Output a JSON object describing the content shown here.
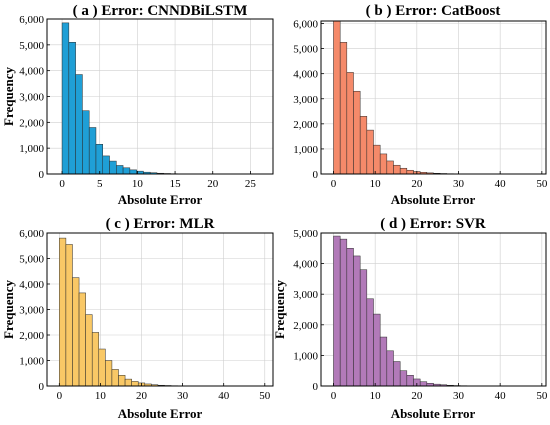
{
  "chart_data": [
    {
      "type": "bar",
      "title": "( a ) Error: CNNDBiLSTM",
      "xlabel": "Absolute Error",
      "ylabel": "Frequency",
      "xlim": [
        -2,
        28
      ],
      "ylim": [
        0,
        6000
      ],
      "xticks": [
        0,
        5,
        10,
        15,
        20,
        25
      ],
      "yticks": [
        0,
        1000,
        2000,
        3000,
        4000,
        5000,
        6000
      ],
      "ytick_labels": [
        "0",
        "1,000",
        "2,000",
        "3,000",
        "4,000",
        "5,000",
        "6,000"
      ],
      "color": "#1f9fd6",
      "bin_start": 0,
      "bin_width": 0.9,
      "values": [
        5850,
        5100,
        3850,
        2450,
        1800,
        1150,
        700,
        500,
        330,
        240,
        160,
        110,
        70,
        50,
        30,
        20,
        12,
        8,
        5,
        3,
        2,
        2,
        1,
        1,
        1,
        1,
        1,
        1,
        1,
        1
      ]
    },
    {
      "type": "bar",
      "title": "( b ) Error: CatBoost",
      "xlabel": "Absolute Error",
      "ylabel": "",
      "xlim": [
        -3,
        51
      ],
      "ylim": [
        0,
        6100
      ],
      "xticks": [
        0,
        10,
        20,
        30,
        40,
        50
      ],
      "yticks": [
        0,
        1000,
        2000,
        3000,
        4000,
        5000,
        6000
      ],
      "ytick_labels": [
        "0",
        "1,000",
        "2,000",
        "3,000",
        "4,000",
        "5,000",
        "6,000"
      ],
      "color": "#f58a6a",
      "bin_start": 0,
      "bin_width": 1.6,
      "values": [
        6100,
        5250,
        4050,
        3300,
        2300,
        1750,
        1150,
        800,
        520,
        350,
        230,
        150,
        100,
        70,
        45,
        30,
        20,
        12,
        8,
        5,
        4,
        3,
        2,
        2,
        1,
        1,
        1,
        1,
        1,
        1,
        1
      ]
    },
    {
      "type": "bar",
      "title": "( c ) Error: MLR",
      "xlabel": "Absolute Error",
      "ylabel": "Frequency",
      "xlim": [
        -3,
        52
      ],
      "ylim": [
        0,
        6000
      ],
      "xticks": [
        0,
        10,
        20,
        30,
        40,
        50
      ],
      "yticks": [
        0,
        1000,
        2000,
        3000,
        4000,
        5000,
        6000
      ],
      "ytick_labels": [
        "0",
        "1,000",
        "2,000",
        "3,000",
        "4,000",
        "5,000",
        "6,000"
      ],
      "color": "#f9c866",
      "bin_start": 0,
      "bin_width": 1.6,
      "values": [
        5800,
        5550,
        4250,
        3650,
        2800,
        2100,
        1450,
        1000,
        650,
        420,
        270,
        180,
        120,
        80,
        50,
        30,
        20,
        12,
        8,
        5,
        3,
        2,
        2,
        1,
        1,
        1,
        1,
        1,
        1,
        1,
        1,
        1
      ]
    },
    {
      "type": "bar",
      "title": "( d ) Error: SVR",
      "xlabel": "Absolute Error",
      "ylabel": "Frequency",
      "xlim": [
        -3,
        51
      ],
      "ylim": [
        0,
        5000
      ],
      "xticks": [
        0,
        10,
        20,
        30,
        40,
        50
      ],
      "yticks": [
        0,
        1000,
        2000,
        3000,
        4000,
        5000
      ],
      "ytick_labels": [
        "0",
        "1,000",
        "2,000",
        "3,000",
        "4,000",
        "5,000"
      ],
      "color": "#b27ab9",
      "bin_start": 0,
      "bin_width": 1.6,
      "values": [
        4900,
        4800,
        4500,
        4250,
        3800,
        2850,
        2350,
        1600,
        1150,
        800,
        500,
        350,
        230,
        140,
        90,
        60,
        40,
        25,
        15,
        10,
        6,
        4,
        3,
        2,
        2,
        1,
        1,
        1,
        1,
        1,
        1
      ]
    }
  ]
}
